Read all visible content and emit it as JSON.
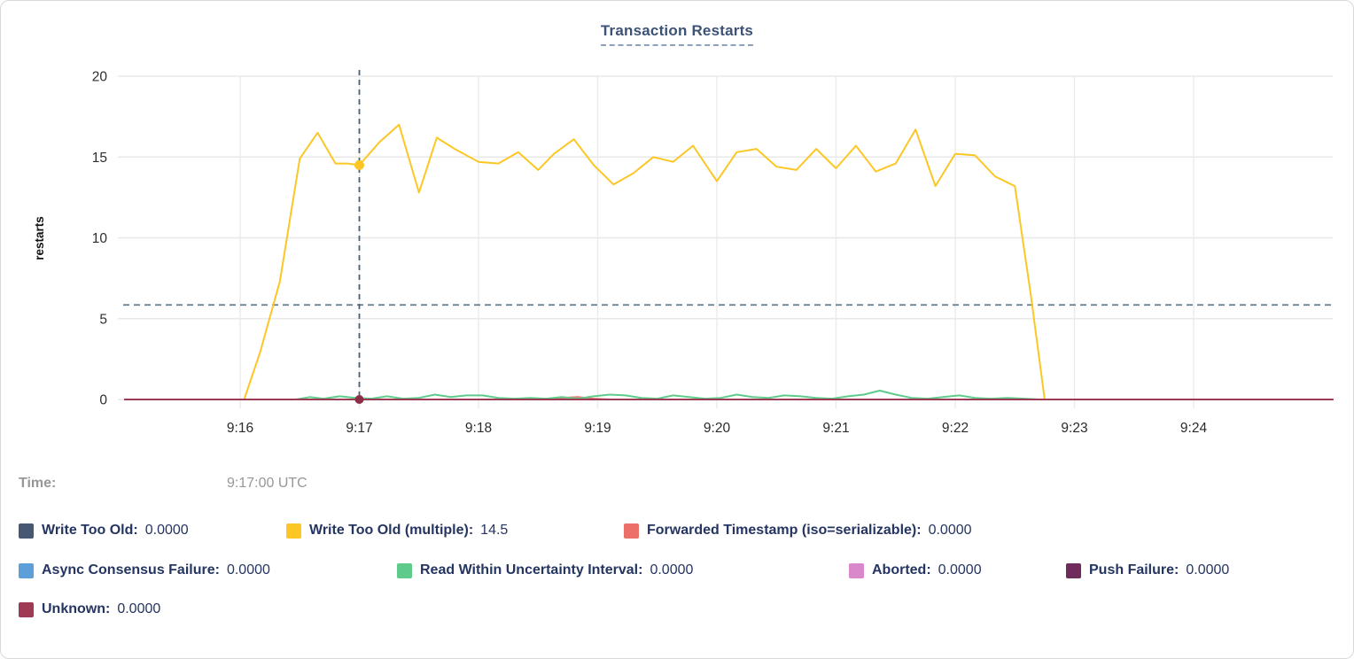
{
  "title": "Transaction Restarts",
  "time_row": {
    "label": "Time:",
    "value": "9:17:00 UTC"
  },
  "legend": {
    "items": [
      {
        "label": "Write Too Old:",
        "value": "0.0000",
        "color": "#475872"
      },
      {
        "label": "Write Too Old (multiple):",
        "value": "14.5",
        "color": "#fcc725"
      },
      {
        "label": "Forwarded Timestamp (iso=serializable):",
        "value": "0.0000",
        "color": "#ec7069"
      },
      {
        "label": "Async Consensus Failure:",
        "value": "0.0000",
        "color": "#5d9fd8"
      },
      {
        "label": "Read Within Uncertainty Interval:",
        "value": "0.0000",
        "color": "#5ecb8a"
      },
      {
        "label": "Aborted:",
        "value": "0.0000",
        "color": "#d989cb"
      },
      {
        "label": "Push Failure:",
        "value": "0.0000",
        "color": "#6e2b5c"
      },
      {
        "label": "Unknown:",
        "value": "0.0000",
        "color": "#9e3a53"
      }
    ]
  },
  "chart_data": {
    "type": "line",
    "title": "Transaction Restarts",
    "xlabel": "",
    "ylabel": "restarts",
    "ylim": [
      0,
      20
    ],
    "y_ticks": [
      0,
      5,
      10,
      15,
      20
    ],
    "x_tick_labels": [
      "9:16",
      "9:17",
      "9:18",
      "9:19",
      "9:20",
      "9:21",
      "9:22",
      "9:23",
      "9:24"
    ],
    "x_tick_seconds": [
      60,
      120,
      180,
      240,
      300,
      360,
      420,
      480,
      540
    ],
    "x_domain_seconds": [
      2,
      610
    ],
    "grid": true,
    "legend_position": "bottom",
    "hover": {
      "time_label": "9:17:00 UTC",
      "time_seconds": 120,
      "hline_value": 5.85,
      "markers": [
        {
          "series": "Write Too Old (multiple)",
          "t": 120,
          "value": 14.5,
          "color": "#fcc725",
          "r": 5.5
        },
        {
          "series": "Unknown",
          "t": 120,
          "value": 0,
          "color": "#8d2d46",
          "r": 5
        }
      ]
    },
    "series": [
      {
        "name": "Write Too Old",
        "color": "#475872",
        "points": [
          [
            2,
            0
          ],
          [
            610,
            0
          ]
        ]
      },
      {
        "name": "Async Consensus Failure",
        "color": "#5d9fd8",
        "points": [
          [
            2,
            0
          ],
          [
            610,
            0
          ]
        ]
      },
      {
        "name": "Aborted",
        "color": "#d989cb",
        "points": [
          [
            2,
            0
          ],
          [
            610,
            0
          ]
        ]
      },
      {
        "name": "Push Failure",
        "color": "#6e2b5c",
        "points": [
          [
            2,
            0
          ],
          [
            610,
            0
          ]
        ]
      },
      {
        "name": "Forwarded Timestamp (iso=serializable)",
        "color": "#ec7069",
        "points": [
          [
            2,
            0
          ],
          [
            212,
            0
          ],
          [
            222,
            0.1
          ],
          [
            230,
            0.15
          ],
          [
            238,
            0.05
          ],
          [
            246,
            0
          ],
          [
            610,
            0
          ]
        ]
      },
      {
        "name": "Read Within Uncertainty Interval",
        "color": "#5ecb8a",
        "points": [
          [
            88,
            0
          ],
          [
            95,
            0.15
          ],
          [
            102,
            0.05
          ],
          [
            110,
            0.2
          ],
          [
            118,
            0.1
          ],
          [
            126,
            0.05
          ],
          [
            134,
            0.2
          ],
          [
            142,
            0.05
          ],
          [
            150,
            0.1
          ],
          [
            158,
            0.3
          ],
          [
            166,
            0.15
          ],
          [
            174,
            0.25
          ],
          [
            182,
            0.25
          ],
          [
            190,
            0.1
          ],
          [
            198,
            0.05
          ],
          [
            206,
            0.1
          ],
          [
            214,
            0.05
          ],
          [
            222,
            0.15
          ],
          [
            230,
            0.05
          ],
          [
            238,
            0.2
          ],
          [
            246,
            0.3
          ],
          [
            254,
            0.25
          ],
          [
            262,
            0.1
          ],
          [
            270,
            0.05
          ],
          [
            278,
            0.25
          ],
          [
            286,
            0.15
          ],
          [
            294,
            0.05
          ],
          [
            302,
            0.1
          ],
          [
            310,
            0.3
          ],
          [
            318,
            0.15
          ],
          [
            326,
            0.1
          ],
          [
            334,
            0.25
          ],
          [
            342,
            0.2
          ],
          [
            350,
            0.1
          ],
          [
            358,
            0.05
          ],
          [
            366,
            0.2
          ],
          [
            374,
            0.3
          ],
          [
            382,
            0.55
          ],
          [
            390,
            0.3
          ],
          [
            398,
            0.1
          ],
          [
            406,
            0.05
          ],
          [
            414,
            0.15
          ],
          [
            422,
            0.25
          ],
          [
            430,
            0.1
          ],
          [
            438,
            0.05
          ],
          [
            446,
            0.1
          ],
          [
            455,
            0.05
          ],
          [
            462,
            0
          ]
        ]
      },
      {
        "name": "Write Too Old (multiple)",
        "color": "#fcc725",
        "points": [
          [
            52,
            0
          ],
          [
            62,
            0
          ],
          [
            70,
            2.9
          ],
          [
            80,
            7.3
          ],
          [
            90,
            14.9
          ],
          [
            99,
            16.5
          ],
          [
            108,
            14.6
          ],
          [
            114,
            14.6
          ],
          [
            120,
            14.5
          ],
          [
            130,
            15.9
          ],
          [
            140,
            17.0
          ],
          [
            150,
            12.8
          ],
          [
            159,
            16.2
          ],
          [
            168,
            15.5
          ],
          [
            180,
            14.7
          ],
          [
            190,
            14.6
          ],
          [
            200,
            15.3
          ],
          [
            210,
            14.2
          ],
          [
            218,
            15.2
          ],
          [
            228,
            16.1
          ],
          [
            238,
            14.5
          ],
          [
            248,
            13.3
          ],
          [
            258,
            14.0
          ],
          [
            268,
            15.0
          ],
          [
            278,
            14.7
          ],
          [
            288,
            15.7
          ],
          [
            300,
            13.5
          ],
          [
            310,
            15.3
          ],
          [
            320,
            15.5
          ],
          [
            330,
            14.4
          ],
          [
            340,
            14.2
          ],
          [
            350,
            15.5
          ],
          [
            360,
            14.3
          ],
          [
            370,
            15.7
          ],
          [
            380,
            14.1
          ],
          [
            390,
            14.6
          ],
          [
            400,
            16.7
          ],
          [
            410,
            13.2
          ],
          [
            420,
            15.2
          ],
          [
            430,
            15.1
          ],
          [
            440,
            13.8
          ],
          [
            450,
            13.2
          ],
          [
            458,
            6.5
          ],
          [
            465,
            0
          ]
        ]
      },
      {
        "name": "Unknown",
        "color": "#9e3a53",
        "points": [
          [
            2,
            0
          ],
          [
            610,
            0
          ]
        ]
      }
    ]
  }
}
